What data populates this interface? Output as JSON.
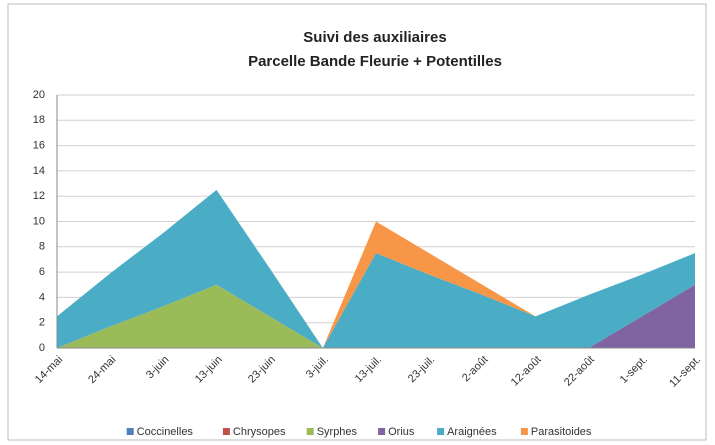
{
  "chart_data": {
    "type": "stacked_area",
    "title": "Suivi des auxiliaires",
    "subtitle": "Parcelle  Bande Fleurie + Potentilles",
    "categories": [
      "14-mai",
      "24-mai",
      "3-juin",
      "13-juin",
      "23-juin",
      "3-juil.",
      "13-juil.",
      "23-juil.",
      "2-août",
      "12-août",
      "22-août",
      "1-sept.",
      "11-sept."
    ],
    "series": [
      {
        "name": "Coccinelles",
        "color": "#4f81bd",
        "values": [
          0,
          0,
          0,
          0,
          0,
          0,
          0,
          0,
          0,
          0,
          0,
          0,
          0
        ]
      },
      {
        "name": "Chrysopes",
        "color": "#c0504d",
        "values": [
          0,
          0,
          0,
          0,
          0,
          0,
          0,
          0,
          0,
          0,
          0,
          0,
          0
        ]
      },
      {
        "name": "Syrphes",
        "color": "#9bbb59",
        "values": [
          0,
          1.7,
          3.3,
          5,
          2.5,
          0,
          0,
          0,
          0,
          0,
          0,
          0,
          0
        ]
      },
      {
        "name": "Orius",
        "color": "#8064a2",
        "values": [
          0,
          0,
          0,
          0,
          0,
          0,
          0,
          0,
          0,
          0,
          0,
          2.5,
          5
        ]
      },
      {
        "name": "Araignées",
        "color": "#4bacc6",
        "values": [
          2.5,
          4.2,
          5.8,
          7.5,
          3.8,
          0,
          7.5,
          5.8,
          4.2,
          2.5,
          4.2,
          3.3,
          2.5
        ]
      },
      {
        "name": "Parasitoides",
        "color": "#f79646",
        "values": [
          0,
          0,
          0,
          0,
          0,
          0,
          2.5,
          1.7,
          0.8,
          0,
          0,
          0,
          0
        ]
      }
    ],
    "ylim": [
      0,
      20
    ],
    "yticks": [
      0,
      2,
      4,
      6,
      8,
      10,
      12,
      14,
      16,
      18,
      20
    ],
    "grid": true,
    "legend": "bottom"
  }
}
